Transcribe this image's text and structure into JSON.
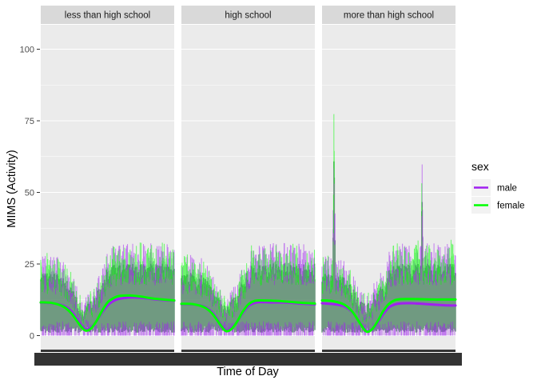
{
  "chart_data": {
    "type": "line",
    "xlabel": "Time of Day",
    "ylabel": "MIMS (Activity)",
    "ylim": [
      0,
      105
    ],
    "yticks": [
      0,
      25,
      50,
      75,
      100
    ],
    "x_domain": [
      0,
      1440
    ],
    "x_tick_labels_illegible": true,
    "legend": {
      "title": "sex",
      "position": "right",
      "entries": [
        {
          "name": "male",
          "color": "#a020f0"
        },
        {
          "name": "female",
          "color": "#00ff00"
        }
      ]
    },
    "colors": {
      "panel_bg": "#ebebeb",
      "strip_bg": "#d9d9d9",
      "band": "#5a8c6e"
    },
    "panels": [
      {
        "label": "less than high school",
        "series": [
          {
            "name": "male",
            "smooth": {
              "x": [
                0,
                120,
                240,
                330,
                420,
                480,
                540,
                600,
                660,
                720,
                780,
                840,
                960,
                1080,
                1200,
                1320,
                1440
              ],
              "y": [
                11.5,
                11.3,
                10.5,
                8.5,
                4.5,
                2.2,
                2.8,
                5.0,
                8.0,
                10.5,
                12.0,
                12.8,
                13.3,
                13.2,
                12.8,
                12.4,
                12.2
              ]
            }
          },
          {
            "name": "female",
            "smooth": {
              "x": [
                0,
                120,
                240,
                330,
                420,
                480,
                540,
                600,
                660,
                720,
                780,
                840,
                960,
                1080,
                1200,
                1320,
                1440
              ],
              "y": [
                11.6,
                11.4,
                10.2,
                7.8,
                3.8,
                1.8,
                2.4,
                5.0,
                8.5,
                11.5,
                13.0,
                13.8,
                14.0,
                13.6,
                13.0,
                12.6,
                12.3
              ]
            }
          }
        ]
      },
      {
        "label": "high school",
        "series": [
          {
            "name": "male",
            "smooth": {
              "x": [
                0,
                120,
                240,
                330,
                420,
                480,
                540,
                600,
                660,
                720,
                780,
                840,
                960,
                1080,
                1200,
                1320,
                1440
              ],
              "y": [
                11.0,
                10.9,
                10.2,
                8.2,
                4.2,
                1.9,
                2.6,
                4.8,
                7.8,
                10.2,
                11.3,
                11.7,
                11.6,
                11.6,
                11.4,
                11.1,
                10.9
              ]
            }
          },
          {
            "name": "female",
            "smooth": {
              "x": [
                0,
                120,
                240,
                330,
                420,
                480,
                540,
                600,
                660,
                720,
                780,
                840,
                960,
                1080,
                1200,
                1320,
                1440
              ],
              "y": [
                11.1,
                11.0,
                10.0,
                7.8,
                3.8,
                1.6,
                2.3,
                4.8,
                8.2,
                10.8,
                12.0,
                12.3,
                12.2,
                12.0,
                11.7,
                11.4,
                11.2
              ]
            }
          }
        ]
      },
      {
        "label": "more than high school",
        "series": [
          {
            "name": "male",
            "smooth": {
              "x": [
                0,
                120,
                240,
                330,
                420,
                480,
                540,
                600,
                660,
                720,
                780,
                840,
                960,
                1080,
                1200,
                1320,
                1440
              ],
              "y": [
                11.3,
                11.0,
                10.2,
                8.0,
                4.0,
                1.6,
                2.2,
                4.5,
                7.5,
                9.8,
                10.8,
                11.2,
                11.3,
                11.1,
                10.8,
                10.6,
                10.5
              ]
            }
          },
          {
            "name": "female",
            "smooth": {
              "x": [
                0,
                120,
                240,
                330,
                420,
                480,
                540,
                600,
                660,
                720,
                780,
                840,
                960,
                1080,
                1200,
                1320,
                1440
              ],
              "y": [
                12.3,
                12.0,
                10.8,
                8.2,
                3.8,
                1.4,
                2.2,
                5.0,
                8.5,
                11.0,
                12.3,
                12.7,
                12.8,
                12.7,
                12.6,
                12.6,
                12.6
              ]
            }
          }
        ]
      }
    ]
  }
}
